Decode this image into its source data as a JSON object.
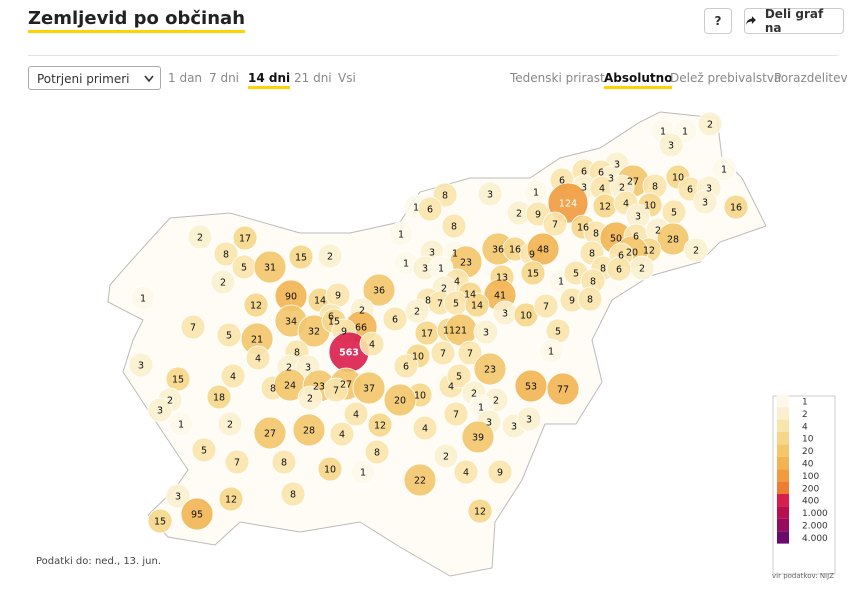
{
  "header": {
    "title": "Zemljevid po občinah",
    "help": "?",
    "share": "Deli graf na"
  },
  "controls": {
    "select": "Potrjeni primeri",
    "ranges": [
      "1 dan",
      "7 dni",
      "14 dni",
      "21 dni",
      "Vsi"
    ],
    "active_range": 2,
    "modes": [
      "Tedenski prirast",
      "Absolutno",
      "Delež prebivalstva",
      "Porazdelitev"
    ],
    "active_mode": 1
  },
  "map": {
    "values": [
      1,
      1,
      2,
      3,
      1,
      3,
      6,
      6,
      3,
      27,
      6,
      3,
      4,
      2,
      8,
      10,
      6,
      3,
      124,
      12,
      4,
      10,
      3,
      5,
      3,
      16,
      8,
      3,
      1,
      1,
      6,
      2,
      9,
      7,
      16,
      8,
      50,
      6,
      2,
      28,
      12,
      20,
      2,
      8,
      1,
      3,
      1,
      23,
      36,
      16,
      9,
      48,
      8,
      6,
      8,
      2,
      6,
      1,
      3,
      1,
      4,
      13,
      15,
      1,
      5,
      8,
      41,
      14,
      2,
      8,
      7,
      5,
      14,
      2,
      3,
      10,
      7,
      9,
      8,
      5,
      1,
      2,
      17,
      8,
      5,
      31,
      15,
      2,
      2,
      1,
      90,
      14,
      9,
      36,
      12,
      6,
      2,
      34,
      32,
      15,
      66,
      6,
      7,
      5,
      21,
      17,
      11,
      21,
      3,
      9,
      563,
      4,
      8,
      4,
      10,
      7,
      7,
      6,
      23,
      3,
      15,
      4,
      2,
      3,
      8,
      24,
      23,
      27,
      37,
      7,
      4,
      5,
      53,
      77,
      2,
      18,
      2,
      2,
      2,
      10,
      20,
      3,
      4,
      1,
      12,
      4,
      7,
      1,
      3,
      3,
      3,
      2,
      27,
      28,
      4,
      39,
      5,
      8,
      2,
      7,
      8,
      10,
      1,
      4,
      9,
      22,
      3,
      12,
      8,
      95,
      15,
      12
    ]
  },
  "legend": {
    "breaks": [
      1,
      2,
      4,
      10,
      20,
      40,
      100,
      200,
      400,
      {
        "value": 1000,
        "label": "1.000"
      },
      {
        "value": 2000,
        "label": "2.000"
      },
      {
        "value": 4000,
        "label": "4.000"
      }
    ],
    "colors": [
      "#fdf8ea",
      "#fbefcf",
      "#f9e4ac",
      "#f6d68a",
      "#f3c66b",
      "#f2b452",
      "#f19b3e",
      "#ee7c33",
      "#d91d4d",
      "#b8104f",
      "#960b5e",
      "#6a0a6b"
    ]
  },
  "footer": {
    "date": "Podatki do: ned., 13. jun.",
    "source": "vir podatkov: NIJZ"
  }
}
